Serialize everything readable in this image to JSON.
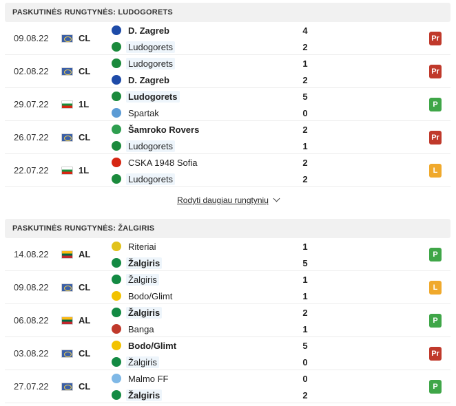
{
  "sections": [
    {
      "title": "PASKUTINĖS RUNGTYNĖS: LUDOGORETS",
      "matches": [
        {
          "date": "09.08.22",
          "flag": "eu",
          "competition": "CL",
          "home": {
            "name": "D. Zagreb",
            "crest": "dinamo-zagreb-crest",
            "color": "#1e4ba8",
            "bold": true,
            "highlight": false
          },
          "away": {
            "name": "Ludogorets",
            "crest": "ludogorets-crest",
            "color": "#1b8a3c",
            "bold": false,
            "highlight": true
          },
          "home_score": "4",
          "away_score": "2",
          "result": "Pr",
          "result_type": "loss"
        },
        {
          "date": "02.08.22",
          "flag": "eu",
          "competition": "CL",
          "home": {
            "name": "Ludogorets",
            "crest": "ludogorets-crest",
            "color": "#1b8a3c",
            "bold": false,
            "highlight": true
          },
          "away": {
            "name": "D. Zagreb",
            "crest": "dinamo-zagreb-crest",
            "color": "#1e4ba8",
            "bold": true,
            "highlight": false
          },
          "home_score": "1",
          "away_score": "2",
          "result": "Pr",
          "result_type": "loss"
        },
        {
          "date": "29.07.22",
          "flag": "bg",
          "competition": "1L",
          "home": {
            "name": "Ludogorets",
            "crest": "ludogorets-crest",
            "color": "#1b8a3c",
            "bold": true,
            "highlight": true
          },
          "away": {
            "name": "Spartak",
            "crest": "spartak-crest",
            "color": "#5b9bd5",
            "bold": false,
            "highlight": false
          },
          "home_score": "5",
          "away_score": "0",
          "result": "P",
          "result_type": "win"
        },
        {
          "date": "26.07.22",
          "flag": "eu",
          "competition": "CL",
          "home": {
            "name": "Šamroko Rovers",
            "crest": "shamrock-rovers-crest",
            "color": "#2e9e4f",
            "bold": true,
            "highlight": false
          },
          "away": {
            "name": "Ludogorets",
            "crest": "ludogorets-crest",
            "color": "#1b8a3c",
            "bold": false,
            "highlight": true
          },
          "home_score": "2",
          "away_score": "1",
          "result": "Pr",
          "result_type": "loss"
        },
        {
          "date": "22.07.22",
          "flag": "bg",
          "competition": "1L",
          "home": {
            "name": "CSKA 1948 Sofia",
            "crest": "cska-1948-crest",
            "color": "#d62612",
            "bold": false,
            "highlight": false
          },
          "away": {
            "name": "Ludogorets",
            "crest": "ludogorets-crest",
            "color": "#1b8a3c",
            "bold": false,
            "highlight": true
          },
          "home_score": "2",
          "away_score": "2",
          "result": "L",
          "result_type": "draw"
        }
      ]
    },
    {
      "title": "PASKUTINĖS RUNGTYNĖS: ŽALGIRIS",
      "matches": [
        {
          "date": "14.08.22",
          "flag": "lt",
          "competition": "AL",
          "home": {
            "name": "Riteriai",
            "crest": "riteriai-crest",
            "color": "#e1c21b",
            "bold": false,
            "highlight": false
          },
          "away": {
            "name": "Žalgiris",
            "crest": "zalgiris-crest",
            "color": "#138a43",
            "bold": true,
            "highlight": true
          },
          "home_score": "1",
          "away_score": "5",
          "result": "P",
          "result_type": "win"
        },
        {
          "date": "09.08.22",
          "flag": "eu",
          "competition": "CL",
          "home": {
            "name": "Žalgiris",
            "crest": "zalgiris-crest",
            "color": "#138a43",
            "bold": false,
            "highlight": true
          },
          "away": {
            "name": "Bodo/Glimt",
            "crest": "bodo-glimt-crest",
            "color": "#f2c200",
            "bold": false,
            "highlight": false
          },
          "home_score": "1",
          "away_score": "1",
          "result": "L",
          "result_type": "draw"
        },
        {
          "date": "06.08.22",
          "flag": "lt",
          "competition": "AL",
          "home": {
            "name": "Žalgiris",
            "crest": "zalgiris-crest",
            "color": "#138a43",
            "bold": true,
            "highlight": true
          },
          "away": {
            "name": "Banga",
            "crest": "banga-crest",
            "color": "#c0392b",
            "bold": false,
            "highlight": false
          },
          "home_score": "2",
          "away_score": "1",
          "result": "P",
          "result_type": "win"
        },
        {
          "date": "03.08.22",
          "flag": "eu",
          "competition": "CL",
          "home": {
            "name": "Bodo/Glimt",
            "crest": "bodo-glimt-crest",
            "color": "#f2c200",
            "bold": true,
            "highlight": false
          },
          "away": {
            "name": "Žalgiris",
            "crest": "zalgiris-crest",
            "color": "#138a43",
            "bold": false,
            "highlight": true
          },
          "home_score": "5",
          "away_score": "0",
          "result": "Pr",
          "result_type": "loss"
        },
        {
          "date": "27.07.22",
          "flag": "eu",
          "competition": "CL",
          "home": {
            "name": "Malmo FF",
            "crest": "malmo-ff-crest",
            "color": "#7fb8e6",
            "bold": false,
            "highlight": false
          },
          "away": {
            "name": "Žalgiris",
            "crest": "zalgiris-crest",
            "color": "#138a43",
            "bold": true,
            "highlight": true
          },
          "home_score": "0",
          "away_score": "2",
          "result": "P",
          "result_type": "win"
        }
      ]
    }
  ],
  "show_more_label": "Rodyti daugiau rungtynių"
}
